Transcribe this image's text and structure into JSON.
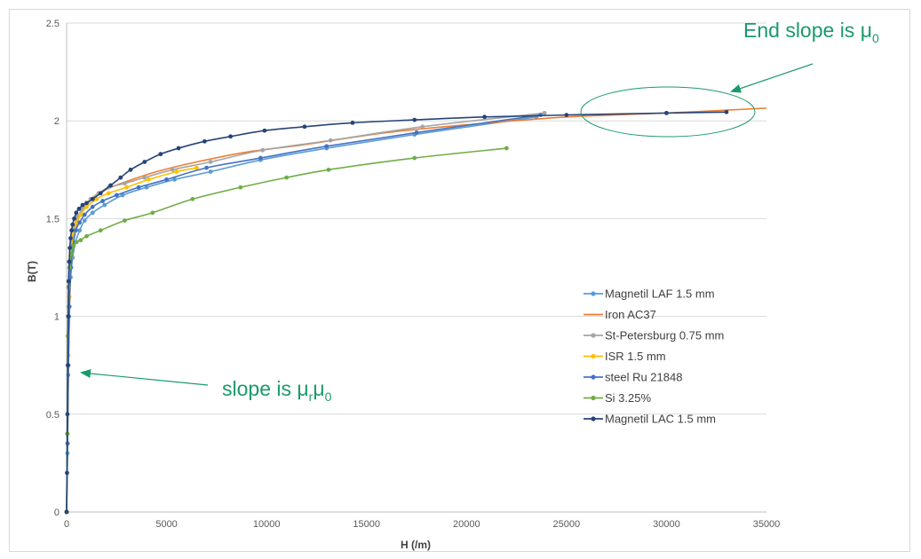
{
  "chart_data": {
    "type": "scatter",
    "xlabel": "H (/m)",
    "ylabel": "B(T)",
    "xlim": [
      0,
      35000
    ],
    "ylim": [
      0,
      2.5
    ],
    "x_ticks": [
      "0",
      "5000",
      "10000",
      "15000",
      "20000",
      "25000",
      "30000",
      "35000"
    ],
    "y_ticks": [
      "0",
      "0.5",
      "1",
      "1.5",
      "2",
      "2.5"
    ],
    "grid": "horizontal",
    "legend_position": "right",
    "series": [
      {
        "name": "Magnetil LAF 1.5 mm",
        "color": "#5b9bd5",
        "points": [
          [
            0,
            0
          ],
          [
            40,
            0.3
          ],
          [
            80,
            0.7
          ],
          [
            120,
            1.0
          ],
          [
            200,
            1.2
          ],
          [
            300,
            1.3
          ],
          [
            450,
            1.38
          ],
          [
            650,
            1.44
          ],
          [
            900,
            1.49
          ],
          [
            1300,
            1.53
          ],
          [
            1900,
            1.57
          ],
          [
            2800,
            1.62
          ],
          [
            4000,
            1.66
          ],
          [
            5400,
            1.7
          ],
          [
            7200,
            1.74
          ],
          [
            9700,
            1.8
          ],
          [
            13000,
            1.86
          ],
          [
            17400,
            1.93
          ],
          [
            23500,
            2.02
          ]
        ]
      },
      {
        "name": "Iron AC37",
        "color": "#ed7d31",
        "points": [
          [
            0,
            0
          ],
          [
            50,
            0.4
          ],
          [
            100,
            0.8
          ],
          [
            160,
            1.1
          ],
          [
            250,
            1.3
          ],
          [
            400,
            1.42
          ],
          [
            600,
            1.5
          ],
          [
            900,
            1.56
          ],
          [
            1400,
            1.61
          ],
          [
            2000,
            1.65
          ],
          [
            3000,
            1.69
          ],
          [
            4500,
            1.74
          ],
          [
            6500,
            1.79
          ],
          [
            9000,
            1.84
          ],
          [
            12000,
            1.88
          ],
          [
            16000,
            1.94
          ],
          [
            20000,
            1.98
          ],
          [
            25000,
            2.02
          ],
          [
            30000,
            2.04
          ],
          [
            35000,
            2.065
          ]
        ]
      },
      {
        "name": "St-Petersburg 0.75 mm",
        "color": "#a5a5a5",
        "points": [
          [
            0,
            0
          ],
          [
            40,
            0.35
          ],
          [
            70,
            0.75
          ],
          [
            110,
            1.05
          ],
          [
            170,
            1.25
          ],
          [
            260,
            1.38
          ],
          [
            380,
            1.46
          ],
          [
            550,
            1.51
          ],
          [
            800,
            1.55
          ],
          [
            1200,
            1.6
          ],
          [
            1600,
            1.63
          ],
          [
            2100,
            1.66
          ],
          [
            2900,
            1.68
          ],
          [
            3900,
            1.71
          ],
          [
            5300,
            1.75
          ],
          [
            7200,
            1.79
          ],
          [
            9800,
            1.85
          ],
          [
            13200,
            1.9
          ],
          [
            17800,
            1.97
          ],
          [
            23900,
            2.04
          ]
        ]
      },
      {
        "name": "ISR 1.5 mm",
        "color": "#ffc000",
        "points": [
          [
            0,
            0
          ],
          [
            50,
            0.4
          ],
          [
            90,
            0.8
          ],
          [
            140,
            1.1
          ],
          [
            220,
            1.3
          ],
          [
            350,
            1.42
          ],
          [
            500,
            1.48
          ],
          [
            700,
            1.52
          ],
          [
            1000,
            1.56
          ],
          [
            1500,
            1.6
          ],
          [
            2100,
            1.63
          ],
          [
            3000,
            1.66
          ],
          [
            4100,
            1.7
          ],
          [
            5500,
            1.74
          ],
          [
            6500,
            1.76
          ]
        ]
      },
      {
        "name": "steel Ru 21848",
        "color": "#4472c4",
        "points": [
          [
            0,
            0
          ],
          [
            50,
            0.35
          ],
          [
            90,
            0.75
          ],
          [
            140,
            1.05
          ],
          [
            220,
            1.25
          ],
          [
            320,
            1.36
          ],
          [
            460,
            1.44
          ],
          [
            650,
            1.48
          ],
          [
            900,
            1.52
          ],
          [
            1300,
            1.56
          ],
          [
            1800,
            1.59
          ],
          [
            2500,
            1.62
          ],
          [
            3600,
            1.66
          ],
          [
            5000,
            1.7
          ],
          [
            7000,
            1.76
          ],
          [
            9700,
            1.81
          ],
          [
            13000,
            1.87
          ],
          [
            17500,
            1.94
          ],
          [
            23700,
            2.03
          ]
        ]
      },
      {
        "name": "Si 3.25%",
        "color": "#70ad47",
        "points": [
          [
            0,
            0
          ],
          [
            30,
            0.4
          ],
          [
            60,
            0.9
          ],
          [
            100,
            1.15
          ],
          [
            150,
            1.25
          ],
          [
            230,
            1.32
          ],
          [
            350,
            1.36
          ],
          [
            500,
            1.38
          ],
          [
            700,
            1.39
          ],
          [
            1000,
            1.41
          ],
          [
            1700,
            1.44
          ],
          [
            2900,
            1.49
          ],
          [
            4300,
            1.53
          ],
          [
            6300,
            1.6
          ],
          [
            8700,
            1.66
          ],
          [
            11000,
            1.71
          ],
          [
            13100,
            1.75
          ],
          [
            17400,
            1.81
          ],
          [
            22000,
            1.86
          ]
        ]
      },
      {
        "name": "Magnetil LAC 1.5 mm",
        "color": "#264478",
        "points": [
          [
            0,
            0
          ],
          [
            20,
            0.2
          ],
          [
            40,
            0.5
          ],
          [
            60,
            0.75
          ],
          [
            80,
            1.0
          ],
          [
            100,
            1.18
          ],
          [
            130,
            1.28
          ],
          [
            160,
            1.35
          ],
          [
            200,
            1.4
          ],
          [
            250,
            1.44
          ],
          [
            300,
            1.47
          ],
          [
            380,
            1.5
          ],
          [
            480,
            1.53
          ],
          [
            620,
            1.55
          ],
          [
            800,
            1.57
          ],
          [
            1000,
            1.58
          ],
          [
            1300,
            1.6
          ],
          [
            1700,
            1.63
          ],
          [
            2200,
            1.67
          ],
          [
            2700,
            1.71
          ],
          [
            3200,
            1.75
          ],
          [
            3900,
            1.79
          ],
          [
            4700,
            1.83
          ],
          [
            5600,
            1.86
          ],
          [
            6900,
            1.895
          ],
          [
            8200,
            1.92
          ],
          [
            9900,
            1.95
          ],
          [
            11900,
            1.97
          ],
          [
            14300,
            1.99
          ],
          [
            17400,
            2.005
          ],
          [
            20900,
            2.02
          ],
          [
            25000,
            2.03
          ],
          [
            30000,
            2.04
          ],
          [
            33000,
            2.045
          ]
        ]
      }
    ],
    "annotations": [
      {
        "text": "End slope is ",
        "symbol": "μ",
        "subscript": "0"
      },
      {
        "text": "slope is ",
        "symbol1": "μ",
        "subscript1": "r",
        "symbol2": "μ",
        "subscript2": "0"
      }
    ]
  }
}
